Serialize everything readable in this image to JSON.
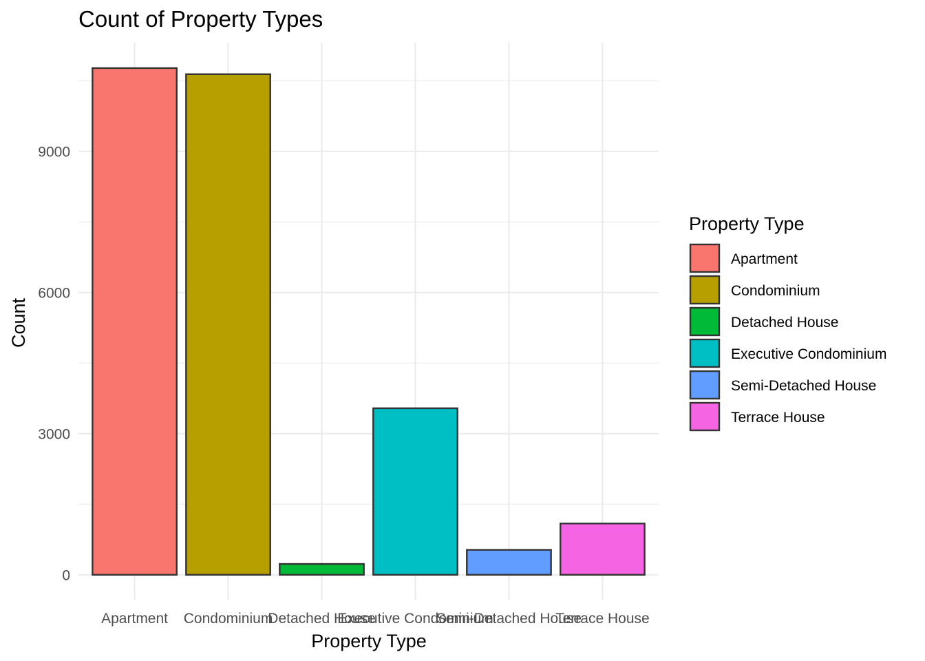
{
  "chart_data": {
    "type": "bar",
    "title": "Count of Property Types",
    "xlabel": "Property Type",
    "ylabel": "Count",
    "categories": [
      "Apartment",
      "Condominium",
      "Detached House",
      "Executive Condominium",
      "Semi-Detached House",
      "Terrace House"
    ],
    "values": [
      10770,
      10640,
      230,
      3540,
      530,
      1090
    ],
    "colors": [
      "#F8766D",
      "#B79F00",
      "#00BA38",
      "#00BFC4",
      "#619CFF",
      "#F564E3"
    ],
    "ylim": [
      -530,
      11310
    ],
    "y_ticks": [
      0,
      3000,
      6000,
      9000
    ],
    "y_minor_ticks": [
      1500,
      4500,
      7500,
      10500
    ],
    "grid": true,
    "legend": {
      "title": "Property Type",
      "position": "right",
      "entries": [
        "Apartment",
        "Condominium",
        "Detached House",
        "Executive Condominium",
        "Semi-Detached House",
        "Terrace House"
      ]
    }
  }
}
